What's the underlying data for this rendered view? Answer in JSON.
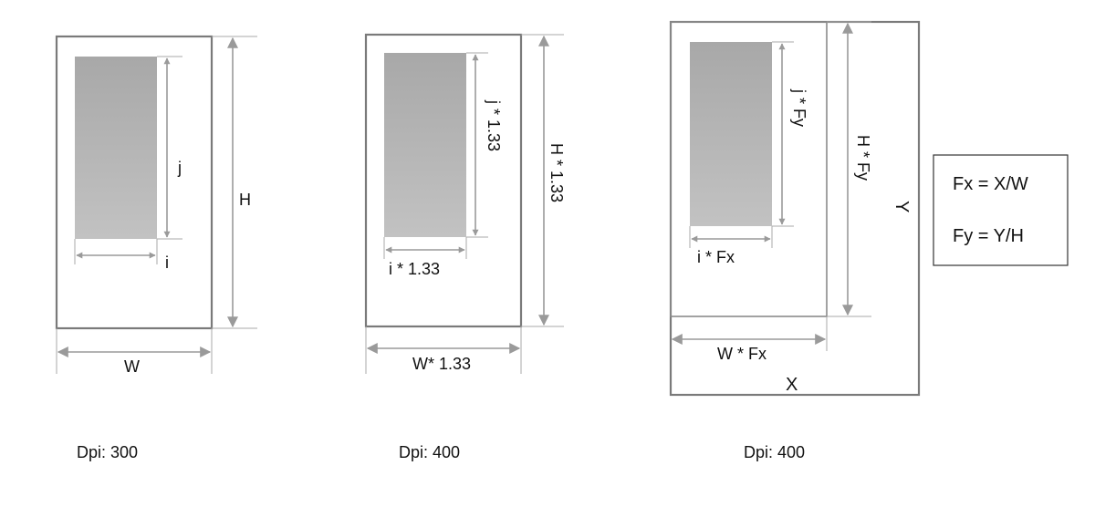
{
  "panel_300": {
    "j_label": "j",
    "i_label": "i",
    "h_label": "H",
    "w_label": "W",
    "dpi_label": "Dpi: 300"
  },
  "panel_400_scaled": {
    "j_label": "j * 1.33",
    "i_label": "i * 1.33",
    "h_label": "H * 1.33",
    "w_label": "W* 1.33",
    "dpi_label": "Dpi: 400"
  },
  "panel_400_resized": {
    "j_label": "j * Fy",
    "i_label": "i * Fx",
    "h_label": "H * Fy",
    "w_label": "W * Fx",
    "y_label": "Y",
    "x_label": "X",
    "dpi_label": "Dpi: 400"
  },
  "formulas": {
    "fx": "Fx = X/W",
    "fy": "Fy = Y/H"
  },
  "colors": {
    "frame": "#7a7a7a",
    "dimension_line": "#9a9a9a",
    "content_fill_top": "#a8a8a8",
    "content_fill_bottom": "#c2c2c2"
  }
}
